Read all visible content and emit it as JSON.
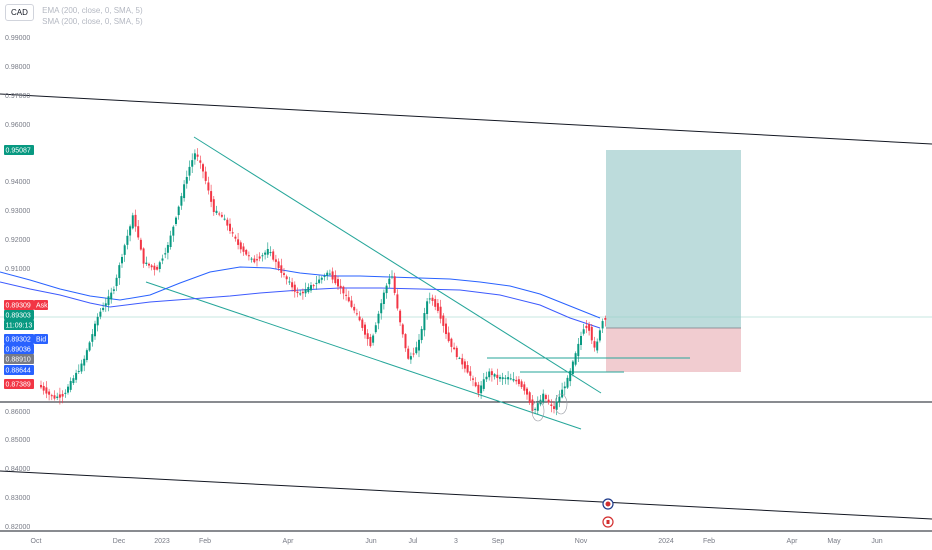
{
  "symbol": "CAD",
  "indicators": [
    "EMA (200, close, 0, SMA, 5)",
    "SMA (200, close, 0, SMA, 5)"
  ],
  "chart_data": {
    "type": "candlestick",
    "price_axis": {
      "ticks": [
        "0.99000",
        "0.98000",
        "0.97000",
        "0.96000",
        "0.94000",
        "0.93000",
        "0.92000",
        "0.91000",
        "0.88000",
        "0.86000",
        "0.85000",
        "0.84000",
        "0.83000",
        "0.82000"
      ]
    },
    "time_axis": {
      "labels": [
        "Oct",
        "Dec",
        "2023",
        "Feb",
        "Apr",
        "Jun",
        "Jul",
        "3",
        "Sep",
        "Nov",
        "2024",
        "Feb",
        "Apr",
        "May",
        "Jun"
      ]
    },
    "price_tags": [
      {
        "label": "0.95087",
        "color": "#089981"
      },
      {
        "label": "0.89309",
        "color": "#f23645",
        "side": "Ask"
      },
      {
        "label": "0.89303",
        "color": "#089981"
      },
      {
        "label": "11:09:13",
        "color": "#089981"
      },
      {
        "label": "0.89302",
        "color": "#2962ff",
        "side": "Bid"
      },
      {
        "label": "0.89036",
        "color": "#2962ff"
      },
      {
        "label": "0.88910",
        "color": "#787b86"
      },
      {
        "label": "0.88644",
        "color": "#2962ff"
      },
      {
        "label": "0.87389",
        "color": "#f23645"
      }
    ],
    "moving_averages": [
      {
        "name": "EMA (200, close, 0, SMA, 5)",
        "color": "#2962ff"
      },
      {
        "name": "SMA (200, close, 0, SMA, 5)",
        "color": "#3d5afe"
      }
    ],
    "position": {
      "type": "long",
      "entry": 0.8891,
      "target": 0.95087,
      "stop": 0.87389,
      "profit_color": "#b2d6d6",
      "loss_color": "#efc7cb"
    },
    "grid": false,
    "colors": {
      "up": "#089981",
      "down": "#f23645",
      "trendline": "#26a69a"
    }
  }
}
